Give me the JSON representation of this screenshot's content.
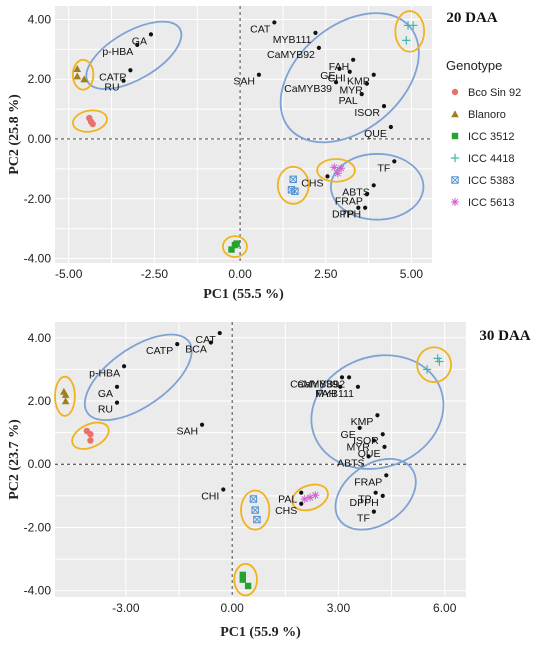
{
  "legend": {
    "title": "Genotype",
    "entries": [
      {
        "name": "Bco Sin 92",
        "color": "#e8716b",
        "shape": "circle"
      },
      {
        "name": "Blanoro",
        "color": "#a07f1c",
        "shape": "triangle"
      },
      {
        "name": "ICC 3512",
        "color": "#27a12f",
        "shape": "square"
      },
      {
        "name": "ICC 4418",
        "color": "#3fb6a6",
        "shape": "plus"
      },
      {
        "name": "ICC 5383",
        "color": "#4f8fd1",
        "shape": "boxed"
      },
      {
        "name": "ICC 5613",
        "color": "#d05fcf",
        "shape": "star"
      }
    ]
  },
  "chart_data": [
    {
      "type": "scatter",
      "title": "20 DAA",
      "xlabel": "PC1 (55.5 %)",
      "ylabel": "PC2 (25.8 %)",
      "xlim": [
        -5.4,
        5.6
      ],
      "ylim": [
        -4.15,
        4.45
      ],
      "xticks": [
        -5,
        -2.5,
        0,
        2.5,
        5
      ],
      "xtick_labels": [
        "-5.00",
        "-2.50",
        "0.00",
        "2.50",
        "5.00"
      ],
      "yticks": [
        -4,
        -2,
        0,
        2,
        4
      ],
      "ytick_labels": [
        "-4.00",
        "-2.00",
        "0.00",
        "2.00",
        "4.00"
      ],
      "grid": true,
      "variables": [
        {
          "label": "GA",
          "x": -2.6,
          "y": 3.5
        },
        {
          "label": "p-HBA",
          "x": -3.0,
          "y": 3.15
        },
        {
          "label": "CATP",
          "x": -3.2,
          "y": 2.3
        },
        {
          "label": "RU",
          "x": -3.4,
          "y": 1.95
        },
        {
          "label": "SAH",
          "x": 0.55,
          "y": 2.15
        },
        {
          "label": "CAT",
          "x": 1.0,
          "y": 3.9
        },
        {
          "label": "MYB111",
          "x": 2.2,
          "y": 3.55
        },
        {
          "label": "CaMYB92",
          "x": 2.3,
          "y": 3.05
        },
        {
          "label": "FAH",
          "x": 3.3,
          "y": 2.65
        },
        {
          "label": "GE",
          "x": 2.9,
          "y": 2.35
        },
        {
          "label": "CHI",
          "x": 3.2,
          "y": 2.25
        },
        {
          "label": "KMP",
          "x": 3.9,
          "y": 2.15
        },
        {
          "label": "CaMYB39",
          "x": 2.8,
          "y": 1.9
        },
        {
          "label": "MYR",
          "x": 3.7,
          "y": 1.85
        },
        {
          "label": "PAL",
          "x": 3.55,
          "y": 1.5
        },
        {
          "label": "ISOR",
          "x": 4.2,
          "y": 1.1
        },
        {
          "label": "QUE",
          "x": 4.4,
          "y": 0.4
        },
        {
          "label": "TF",
          "x": 4.5,
          "y": -0.75
        },
        {
          "label": "CHS",
          "x": 2.55,
          "y": -1.25
        },
        {
          "label": "ABTS",
          "x": 3.9,
          "y": -1.55
        },
        {
          "label": "FRAP",
          "x": 3.7,
          "y": -1.85
        },
        {
          "label": "TP",
          "x": 3.45,
          "y": -2.3
        },
        {
          "label": "DPPH",
          "x": 3.65,
          "y": -2.3
        }
      ],
      "series": [
        {
          "name": "Bco Sin 92",
          "points": [
            [
              -4.4,
              0.7
            ],
            [
              -4.3,
              0.5
            ],
            [
              -4.35,
              0.58
            ]
          ]
        },
        {
          "name": "Blanoro",
          "points": [
            [
              -4.75,
              2.35
            ],
            [
              -4.55,
              2.0
            ],
            [
              -4.75,
              2.1
            ]
          ]
        },
        {
          "name": "ICC 3512",
          "points": [
            [
              -0.15,
              -3.55
            ],
            [
              -0.25,
              -3.7
            ],
            [
              -0.1,
              -3.5
            ]
          ]
        },
        {
          "name": "ICC 4418",
          "points": [
            [
              4.9,
              3.8
            ],
            [
              5.05,
              3.8
            ],
            [
              4.85,
              3.3
            ]
          ]
        },
        {
          "name": "ICC 5383",
          "points": [
            [
              1.55,
              -1.35
            ],
            [
              1.5,
              -1.7
            ],
            [
              1.6,
              -1.75
            ]
          ]
        },
        {
          "name": "ICC 5613",
          "points": [
            [
              2.75,
              -0.95
            ],
            [
              2.95,
              -0.98
            ],
            [
              2.85,
              -1.15
            ]
          ]
        }
      ],
      "ellipses": [
        {
          "color": "blue",
          "cx": -3.1,
          "cy": 2.8,
          "rx": 1.55,
          "ry": 0.8,
          "angle": -30
        },
        {
          "color": "blue",
          "cx": 3.2,
          "cy": 2.05,
          "rx": 2.3,
          "ry": 1.75,
          "angle": -40
        },
        {
          "color": "blue",
          "cx": 4.0,
          "cy": -1.6,
          "rx": 1.35,
          "ry": 1.1,
          "angle": 0
        },
        {
          "color": "gold",
          "cx": -4.58,
          "cy": 2.15,
          "rx": 0.3,
          "ry": 0.5,
          "angle": 0
        },
        {
          "color": "gold",
          "cx": -4.38,
          "cy": 0.6,
          "rx": 0.5,
          "ry": 0.35,
          "angle": -10
        },
        {
          "color": "gold",
          "cx": -0.15,
          "cy": -3.6,
          "rx": 0.35,
          "ry": 0.35,
          "angle": 0
        },
        {
          "color": "gold",
          "cx": 1.55,
          "cy": -1.55,
          "rx": 0.45,
          "ry": 0.62,
          "angle": 0
        },
        {
          "color": "gold",
          "cx": 2.8,
          "cy": -1.05,
          "rx": 0.55,
          "ry": 0.38,
          "angle": 0
        },
        {
          "color": "gold",
          "cx": 4.95,
          "cy": 3.6,
          "rx": 0.42,
          "ry": 0.68,
          "angle": 0
        }
      ]
    },
    {
      "type": "scatter",
      "title": "30 DAA",
      "xlabel": "PC1 (55.9 %)",
      "ylabel": "PC2 (23.7 %)",
      "xlim": [
        -5.0,
        6.6
      ],
      "ylim": [
        -4.2,
        4.5
      ],
      "xticks": [
        -3,
        0,
        3,
        6
      ],
      "xtick_labels": [
        "-3.00",
        "0.00",
        "3.00",
        "6.00"
      ],
      "yticks": [
        -4,
        -2,
        0,
        2,
        4
      ],
      "ytick_labels": [
        "-4.00",
        "-2.00",
        "0.00",
        "2.00",
        "4.00"
      ],
      "grid": true,
      "variables": [
        {
          "label": "BCA",
          "x": -0.6,
          "y": 3.85
        },
        {
          "label": "CAT",
          "x": -0.35,
          "y": 4.15
        },
        {
          "label": "CATP",
          "x": -1.55,
          "y": 3.8
        },
        {
          "label": "p-HBA",
          "x": -3.05,
          "y": 3.1
        },
        {
          "label": "GA",
          "x": -3.25,
          "y": 2.45
        },
        {
          "label": "RU",
          "x": -3.25,
          "y": 1.95
        },
        {
          "label": "SAH",
          "x": -0.85,
          "y": 1.25
        },
        {
          "label": "CHI",
          "x": -0.25,
          "y": -0.8
        },
        {
          "label": "CaMYB39",
          "x": 3.1,
          "y": 2.75
        },
        {
          "label": "CaMYB92",
          "x": 3.3,
          "y": 2.75
        },
        {
          "label": "FAH",
          "x": 3.05,
          "y": 2.45
        },
        {
          "label": "MYB111",
          "x": 3.55,
          "y": 2.45
        },
        {
          "label": "KMP",
          "x": 4.1,
          "y": 1.55
        },
        {
          "label": "GE",
          "x": 3.6,
          "y": 1.15
        },
        {
          "label": "ISOR",
          "x": 4.25,
          "y": 0.95
        },
        {
          "label": "MYR",
          "x": 4.0,
          "y": 0.75
        },
        {
          "label": "QUE",
          "x": 4.3,
          "y": 0.55
        },
        {
          "label": "ABTS",
          "x": 3.85,
          "y": 0.25
        },
        {
          "label": "FRAP",
          "x": 4.35,
          "y": -0.35
        },
        {
          "label": "TP",
          "x": 4.05,
          "y": -0.9
        },
        {
          "label": "DPPH",
          "x": 4.25,
          "y": -1.0
        },
        {
          "label": "TF",
          "x": 4.0,
          "y": -1.5
        },
        {
          "label": "PAL",
          "x": 1.95,
          "y": -0.9
        },
        {
          "label": "CHS",
          "x": 1.95,
          "y": -1.25
        }
      ],
      "series": [
        {
          "name": "Bco Sin 92",
          "points": [
            [
              -4.1,
              1.05
            ],
            [
              -4.0,
              0.95
            ],
            [
              -4.0,
              0.75
            ]
          ]
        },
        {
          "name": "Blanoro",
          "points": [
            [
              -4.75,
              2.3
            ],
            [
              -4.7,
              2.2
            ],
            [
              -4.7,
              2.0
            ]
          ]
        },
        {
          "name": "ICC 3512",
          "points": [
            [
              0.3,
              -3.5
            ],
            [
              0.3,
              -3.65
            ],
            [
              0.45,
              -3.85
            ]
          ]
        },
        {
          "name": "ICC 4418",
          "points": [
            [
              5.8,
              3.35
            ],
            [
              5.85,
              3.25
            ],
            [
              5.5,
              3.0
            ]
          ]
        },
        {
          "name": "ICC 5383",
          "points": [
            [
              0.6,
              -1.1
            ],
            [
              0.65,
              -1.45
            ],
            [
              0.7,
              -1.75
            ]
          ]
        },
        {
          "name": "ICC 5613",
          "points": [
            [
              2.05,
              -1.1
            ],
            [
              2.2,
              -1.05
            ],
            [
              2.35,
              -0.98
            ]
          ]
        }
      ],
      "ellipses": [
        {
          "color": "blue",
          "cx": -2.65,
          "cy": 2.75,
          "rx": 1.75,
          "ry": 0.92,
          "angle": -35
        },
        {
          "color": "blue",
          "cx": 4.1,
          "cy": 1.65,
          "rx": 1.9,
          "ry": 1.75,
          "angle": -20
        },
        {
          "color": "blue",
          "cx": 4.05,
          "cy": -0.95,
          "rx": 1.25,
          "ry": 0.95,
          "angle": -35
        },
        {
          "color": "gold",
          "cx": -4.72,
          "cy": 2.15,
          "rx": 0.28,
          "ry": 0.62,
          "angle": 0
        },
        {
          "color": "gold",
          "cx": -4.0,
          "cy": 0.9,
          "rx": 0.55,
          "ry": 0.36,
          "angle": -25
        },
        {
          "color": "gold",
          "cx": 0.38,
          "cy": -3.65,
          "rx": 0.32,
          "ry": 0.5,
          "angle": 0
        },
        {
          "color": "gold",
          "cx": 0.65,
          "cy": -1.45,
          "rx": 0.4,
          "ry": 0.62,
          "angle": 0
        },
        {
          "color": "gold",
          "cx": 2.2,
          "cy": -1.05,
          "rx": 0.52,
          "ry": 0.38,
          "angle": -20
        },
        {
          "color": "gold",
          "cx": 5.7,
          "cy": 3.15,
          "rx": 0.48,
          "ry": 0.55,
          "angle": 0
        }
      ]
    }
  ]
}
